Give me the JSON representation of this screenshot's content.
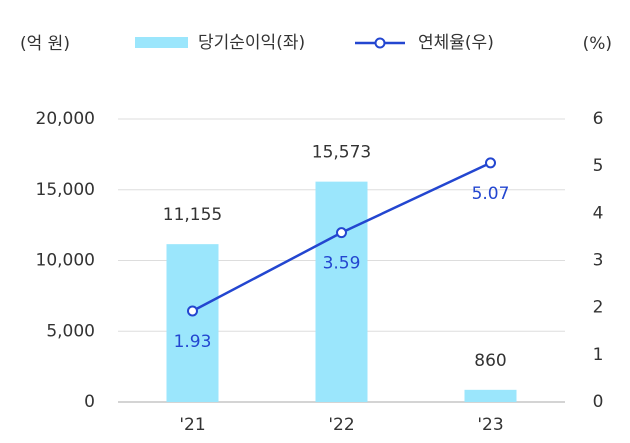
{
  "chart_data": {
    "type": "bar",
    "y_label": "(억 원)",
    "y2_label": "(%)",
    "categories": [
      "'21",
      "'22",
      "'23"
    ],
    "series": [
      {
        "name": "당기순이익(좌)",
        "type": "bar",
        "color": "#9be6fc",
        "values": [
          11155,
          15573,
          860
        ],
        "value_labels": [
          "11,155",
          "15,573",
          "860"
        ]
      },
      {
        "name": "연체율(우)",
        "type": "line",
        "axis": "y2",
        "color": "#2346d0",
        "values": [
          1.93,
          3.59,
          5.07
        ]
      }
    ],
    "ylim": [
      0,
      20000
    ],
    "yticks": [
      0,
      {
        "value": 5000,
        "label": "5,000"
      },
      {
        "value": 10000,
        "label": "10,000"
      },
      {
        "value": 15000,
        "label": "15,000"
      },
      {
        "value": 20000,
        "label": "20,000"
      }
    ],
    "y2lim": [
      0,
      6
    ],
    "y2ticks": [
      0,
      1,
      2,
      3,
      4,
      5,
      6
    ],
    "grid": true
  }
}
